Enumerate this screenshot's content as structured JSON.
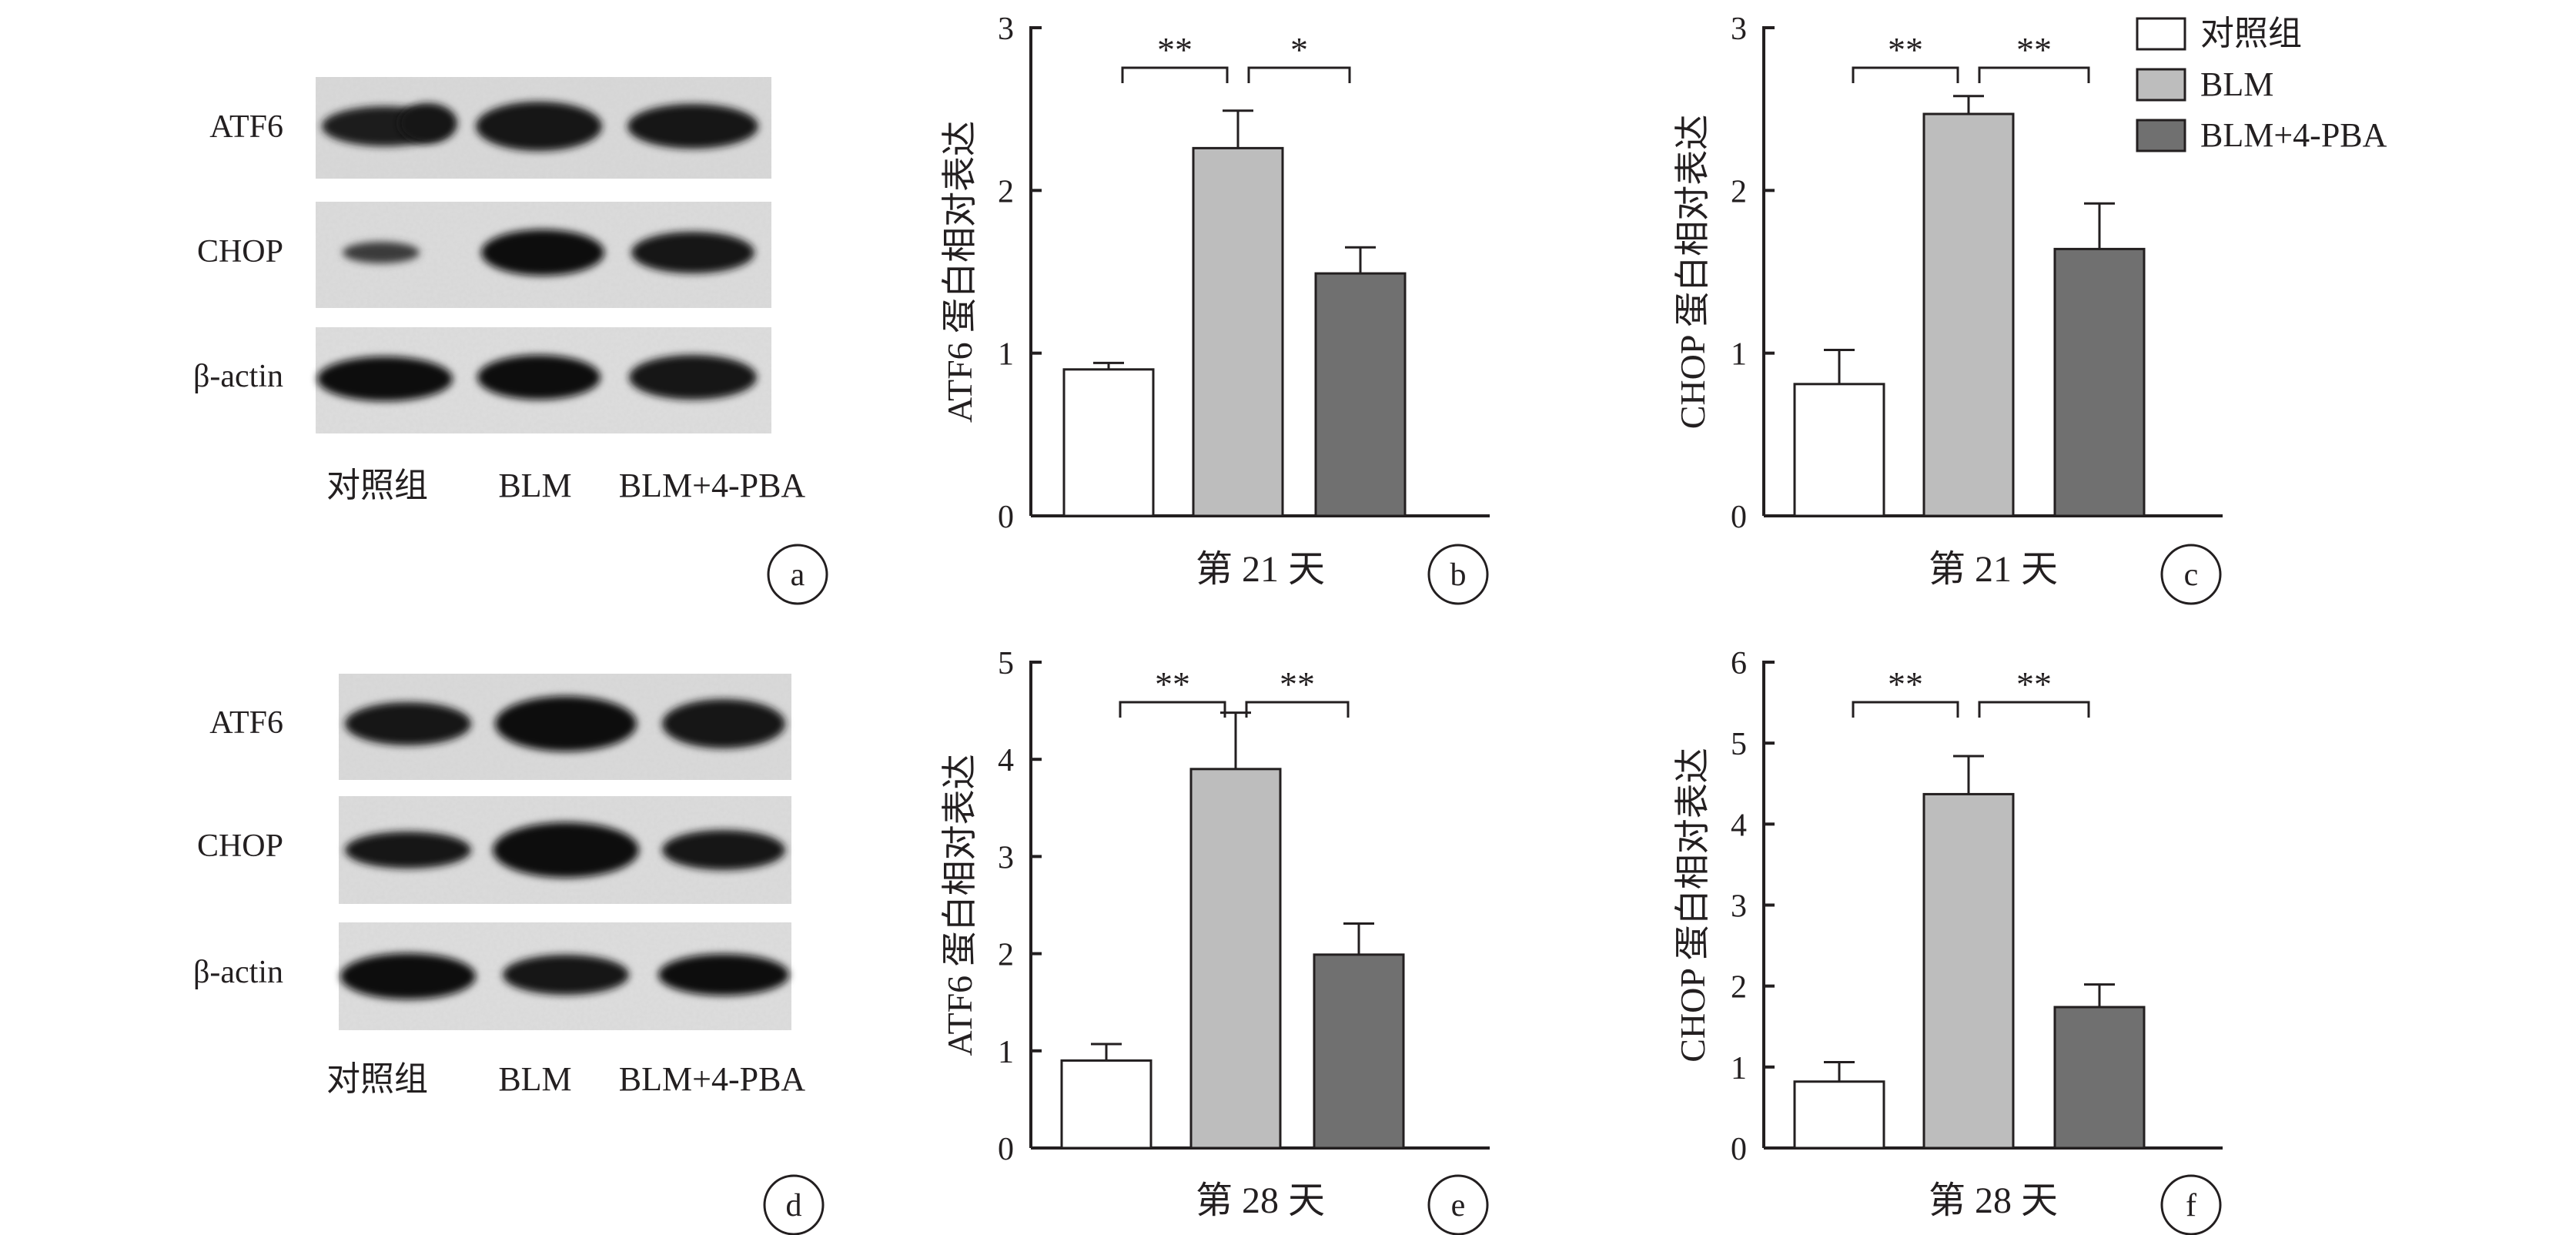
{
  "legend": {
    "position": "top-right",
    "entries": [
      {
        "label": "对照组",
        "color": "#ffffff"
      },
      {
        "label": "BLM",
        "color": "#bdbdbd"
      },
      {
        "label": "BLM+4-PBA",
        "color": "#707070"
      }
    ]
  },
  "panel_labels": [
    "a",
    "b",
    "c",
    "d",
    "e",
    "f"
  ],
  "blots": [
    {
      "panel": "a",
      "row_labels": [
        "ATF6",
        "CHOP",
        "β-actin"
      ],
      "lane_labels": [
        "对照组",
        "BLM",
        "BLM+4-PBA"
      ]
    },
    {
      "panel": "d",
      "row_labels": [
        "ATF6",
        "CHOP",
        "β-actin"
      ],
      "lane_labels": [
        "对照组",
        "BLM",
        "BLM+4-PBA"
      ]
    }
  ],
  "chart_data": [
    {
      "panel": "b",
      "type": "bar",
      "categories": [
        "对照组",
        "BLM",
        "BLM+4-PBA"
      ],
      "values": [
        0.9,
        2.26,
        1.49
      ],
      "errors": [
        0.04,
        0.23,
        0.16
      ],
      "colors": [
        "#ffffff",
        "#bdbdbd",
        "#707070"
      ],
      "xlabel": "第 21 天",
      "ylabel": "ATF6 蛋白相对表达",
      "ylim": [
        0,
        3
      ],
      "yticks": [
        0,
        1,
        2,
        3
      ],
      "significance": [
        {
          "from": 0,
          "to": 1,
          "label": "**"
        },
        {
          "from": 1,
          "to": 2,
          "label": "*"
        }
      ]
    },
    {
      "panel": "c",
      "type": "bar",
      "categories": [
        "对照组",
        "BLM",
        "BLM+4-PBA"
      ],
      "values": [
        0.81,
        2.47,
        1.64
      ],
      "errors": [
        0.21,
        0.11,
        0.28
      ],
      "colors": [
        "#ffffff",
        "#bdbdbd",
        "#707070"
      ],
      "xlabel": "第 21 天",
      "ylabel": "CHOP 蛋白相对表达",
      "ylim": [
        0,
        3
      ],
      "yticks": [
        0,
        1,
        2,
        3
      ],
      "significance": [
        {
          "from": 0,
          "to": 1,
          "label": "**"
        },
        {
          "from": 1,
          "to": 2,
          "label": "**"
        }
      ]
    },
    {
      "panel": "e",
      "type": "bar",
      "categories": [
        "对照组",
        "BLM",
        "BLM+4-PBA"
      ],
      "values": [
        0.9,
        3.9,
        1.99
      ],
      "errors": [
        0.17,
        0.58,
        0.32
      ],
      "colors": [
        "#ffffff",
        "#bdbdbd",
        "#707070"
      ],
      "xlabel": "第 28 天",
      "ylabel": "ATF6 蛋白相对表达",
      "ylim": [
        0,
        5
      ],
      "yticks": [
        0,
        1,
        2,
        3,
        4,
        5
      ],
      "significance": [
        {
          "from": 0,
          "to": 1,
          "label": "**"
        },
        {
          "from": 1,
          "to": 2,
          "label": "**"
        }
      ]
    },
    {
      "panel": "f",
      "type": "bar",
      "categories": [
        "对照组",
        "BLM",
        "BLM+4-PBA"
      ],
      "values": [
        0.82,
        4.37,
        1.74
      ],
      "errors": [
        0.24,
        0.47,
        0.28
      ],
      "colors": [
        "#ffffff",
        "#bdbdbd",
        "#707070"
      ],
      "xlabel": "第 28 天",
      "ylabel": "CHOP 蛋白相对表达",
      "ylim": [
        0,
        6
      ],
      "yticks": [
        0,
        1,
        2,
        3,
        4,
        5,
        6
      ],
      "significance": [
        {
          "from": 0,
          "to": 1,
          "label": "**"
        },
        {
          "from": 1,
          "to": 2,
          "label": "**"
        }
      ]
    }
  ]
}
